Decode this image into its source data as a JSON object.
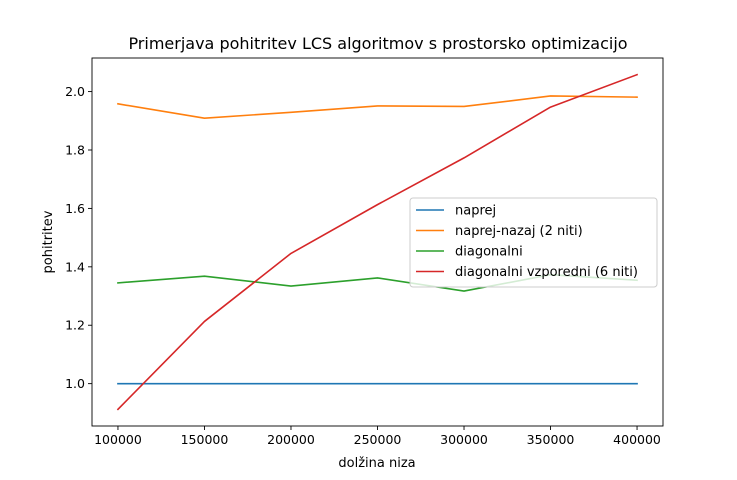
{
  "chart_data": {
    "type": "line",
    "title": "Primerjava pohitritev LCS algoritmov s prostorsko optimizacijo",
    "xlabel": "dolžina niza",
    "ylabel": "pohitritev",
    "x": [
      100000,
      150000,
      200000,
      250000,
      300000,
      350000,
      400000
    ],
    "xlim": [
      85000,
      415000
    ],
    "ylim": [
      0.855,
      2.115
    ],
    "xticks": [
      100000,
      150000,
      200000,
      250000,
      300000,
      350000,
      400000
    ],
    "xtick_labels": [
      "100000",
      "150000",
      "200000",
      "250000",
      "300000",
      "350000",
      "400000"
    ],
    "yticks": [
      1.0,
      1.2,
      1.4,
      1.6,
      1.8,
      2.0
    ],
    "ytick_labels": [
      "1.0",
      "1.2",
      "1.4",
      "1.6",
      "1.8",
      "2.0"
    ],
    "grid": false,
    "legend_position": "center-right",
    "series": [
      {
        "name": "naprej",
        "color": "#1f77b4",
        "values": [
          1.0,
          1.0,
          1.0,
          1.0,
          1.0,
          1.0,
          1.0
        ]
      },
      {
        "name": "naprej-nazaj (2 niti)",
        "color": "#ff7f0e",
        "values": [
          1.958,
          1.909,
          1.929,
          1.951,
          1.949,
          1.985,
          1.981
        ]
      },
      {
        "name": "diagonalni",
        "color": "#2ca02c",
        "values": [
          1.345,
          1.368,
          1.334,
          1.362,
          1.317,
          1.373,
          1.354
        ]
      },
      {
        "name": "diagonalni vzporedni (6 niti)",
        "color": "#d62728",
        "values": [
          0.912,
          1.213,
          1.446,
          1.613,
          1.773,
          1.947,
          2.058
        ]
      }
    ]
  }
}
